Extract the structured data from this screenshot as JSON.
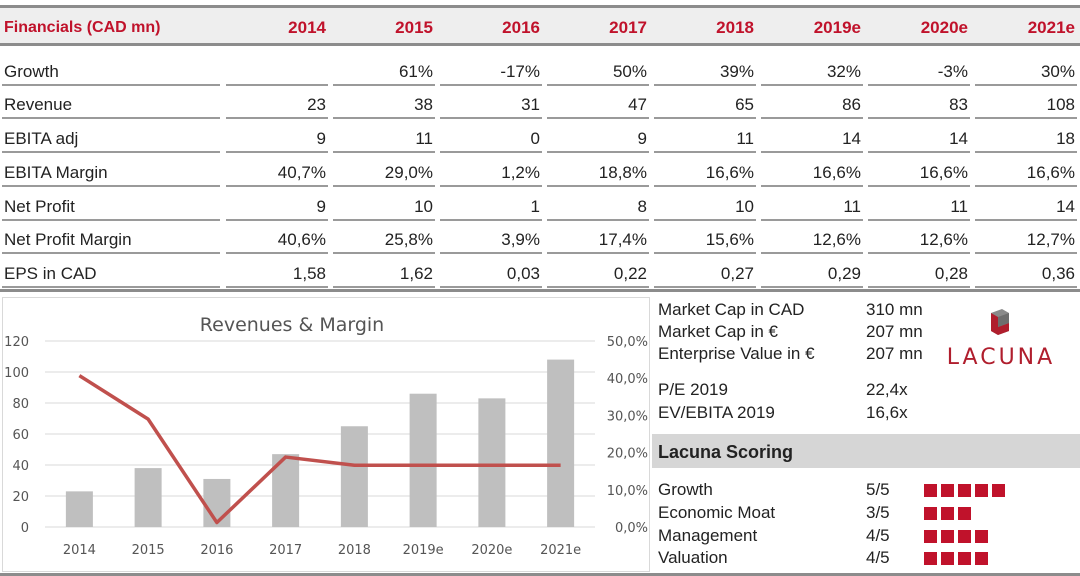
{
  "table": {
    "header_label": "Financials (CAD mn)",
    "years": [
      "2014",
      "2015",
      "2016",
      "2017",
      "2018",
      "2019e",
      "2020e",
      "2021e"
    ],
    "rows": [
      {
        "label": "Growth",
        "values": [
          "",
          "61%",
          "-17%",
          "50%",
          "39%",
          "32%",
          "-3%",
          "30%"
        ]
      },
      {
        "label": "Revenue",
        "values": [
          "23",
          "38",
          "31",
          "47",
          "65",
          "86",
          "83",
          "108"
        ]
      },
      {
        "label": "EBITA adj",
        "values": [
          "9",
          "11",
          "0",
          "9",
          "11",
          "14",
          "14",
          "18"
        ]
      },
      {
        "label": "EBITA Margin",
        "values": [
          "40,7%",
          "29,0%",
          "1,2%",
          "18,8%",
          "16,6%",
          "16,6%",
          "16,6%",
          "16,6%"
        ]
      },
      {
        "label": "Net Profit",
        "values": [
          "9",
          "10",
          "1",
          "8",
          "10",
          "11",
          "11",
          "14"
        ]
      },
      {
        "label": "Net Profit Margin",
        "values": [
          "40,6%",
          "25,8%",
          "3,9%",
          "17,4%",
          "15,6%",
          "12,6%",
          "12,6%",
          "12,7%"
        ]
      },
      {
        "label": "EPS in CAD",
        "values": [
          "1,58",
          "1,62",
          "0,03",
          "0,22",
          "0,27",
          "0,29",
          "0,28",
          "0,36"
        ]
      }
    ]
  },
  "chart_data": {
    "type": "bar",
    "title": "Revenues & Margin",
    "categories": [
      "2014",
      "2015",
      "2016",
      "2017",
      "2018",
      "2019e",
      "2020e",
      "2021e"
    ],
    "series": [
      {
        "values": [
          23,
          38,
          31,
          47,
          65,
          86,
          83,
          108
        ],
        "type": "bar",
        "axis": "left",
        "color": "#bfbfbf"
      },
      {
        "values": [
          40.7,
          29.0,
          1.2,
          18.8,
          16.6,
          16.6,
          16.6,
          16.6
        ],
        "type": "line",
        "axis": "right",
        "color": "#c0504d"
      }
    ],
    "y_left": {
      "min": 0,
      "max": 120,
      "ticks": [
        "0",
        "20",
        "40",
        "60",
        "80",
        "100",
        "120"
      ]
    },
    "y_right": {
      "min": 0,
      "max": 50,
      "ticks": [
        "0,0%",
        "10,0%",
        "20,0%",
        "30,0%",
        "40,0%",
        "50,0%"
      ]
    },
    "grid": true
  },
  "info": {
    "market": [
      {
        "label": "Market Cap in CAD",
        "value": "310 mn"
      },
      {
        "label": "Market Cap in €",
        "value": "207 mn"
      },
      {
        "label": "Enterprise Value in €",
        "value": "207 mn"
      }
    ],
    "multiples": [
      {
        "label": "P/E 2019",
        "value": "22,4x"
      },
      {
        "label": "EV/EBITA 2019",
        "value": "16,6x"
      }
    ],
    "logo_text": "LACUNA",
    "scoring_title": "Lacuna Scoring",
    "scores": [
      {
        "label": "Growth",
        "value": "5/5",
        "n": 5
      },
      {
        "label": "Economic Moat",
        "value": "3/5",
        "n": 3
      },
      {
        "label": "Management",
        "value": "4/5",
        "n": 4
      },
      {
        "label": "Valuation",
        "value": "4/5",
        "n": 4
      }
    ]
  },
  "colors": {
    "accent": "#c0122b",
    "bar": "#bfbfbf",
    "line": "#c0504d"
  }
}
